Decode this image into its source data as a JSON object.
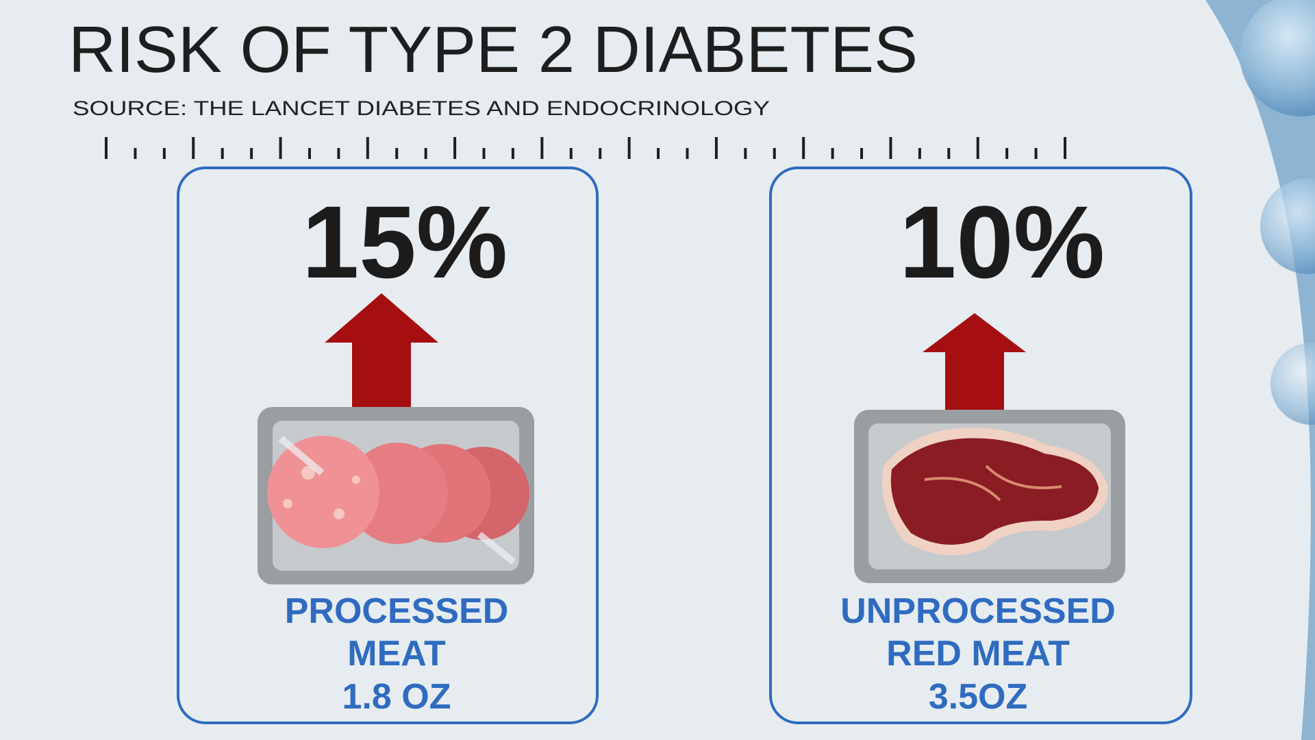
{
  "header": {
    "title": "RISK OF TYPE 2 DIABETES",
    "source": "SOURCE: THE LANCET DIABETES AND ENDOCRINOLOGY"
  },
  "cards": [
    {
      "value": "15%",
      "label": [
        "PROCESSED",
        "MEAT",
        "1.8 OZ"
      ]
    },
    {
      "value": "10%",
      "label": [
        "UNPROCESSED",
        "RED MEAT",
        "3.5OZ"
      ]
    }
  ]
}
